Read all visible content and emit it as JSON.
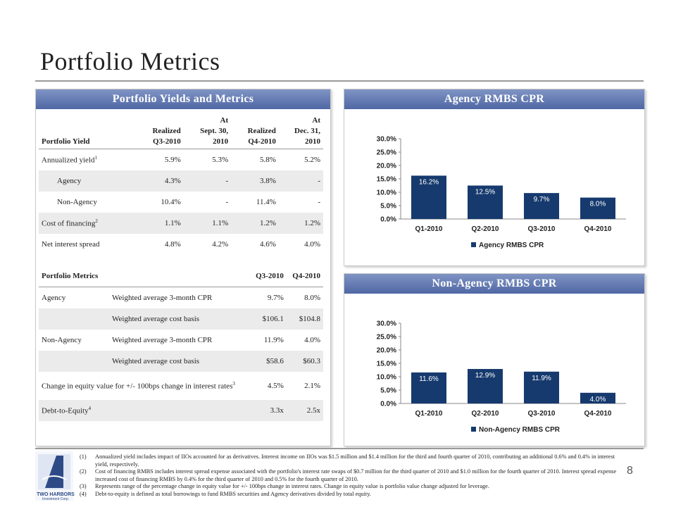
{
  "page": {
    "title": "Portfolio Metrics",
    "page_number": "8"
  },
  "left_panel": {
    "header": "Portfolio Yields and Metrics",
    "yield_table": {
      "header": {
        "label": "Portfolio Yield",
        "col1": [
          "Realized",
          "Q3-2010"
        ],
        "col2": [
          "At",
          "Sept. 30,",
          "2010"
        ],
        "col3": [
          "Realized",
          "Q4-2010"
        ],
        "col4": [
          "At",
          "Dec. 31,",
          "2010"
        ]
      },
      "rows": [
        {
          "label": "Annualized yield",
          "sup": "1",
          "v1": "5.9%",
          "v2": "5.3%",
          "v3": "5.8%",
          "v4": "5.2%",
          "indent": false
        },
        {
          "label": "Agency",
          "sup": "",
          "v1": "4.3%",
          "v2": "-",
          "v3": "3.8%",
          "v4": "-",
          "indent": true
        },
        {
          "label": "Non-Agency",
          "sup": "",
          "v1": "10.4%",
          "v2": "-",
          "v3": "11.4%",
          "v4": "-",
          "indent": true
        },
        {
          "label": "Cost of financing",
          "sup": "2",
          "v1": "1.1%",
          "v2": "1.1%",
          "v3": "1.2%",
          "v4": "1.2%",
          "indent": false
        },
        {
          "label": "Net interest spread",
          "sup": "",
          "v1": "4.8%",
          "v2": "4.2%",
          "v3": "4.6%",
          "v4": "4.0%",
          "indent": false
        }
      ]
    },
    "metrics_table": {
      "header": {
        "label": "Portfolio Metrics",
        "col1": "Q3-2010",
        "col2": "Q4-2010"
      },
      "rows": [
        {
          "label": "Agency",
          "metric": "Weighted average 3-month CPR",
          "v1": "9.7%",
          "v2": "8.0%"
        },
        {
          "label": "",
          "metric": "Weighted average cost basis",
          "v1": "$106.1",
          "v2": "$104.8"
        },
        {
          "label": "Non-Agency",
          "metric": "Weighted average 3-month CPR",
          "v1": "11.9%",
          "v2": "4.0%"
        },
        {
          "label": "",
          "metric": "Weighted average cost basis",
          "v1": "$58.6",
          "v2": "$60.3"
        }
      ],
      "change_row": {
        "label": "Change in equity value for +/- 100bps change in interest rates",
        "sup": "3",
        "v1": "4.5%",
        "v2": "2.1%"
      },
      "dte_row": {
        "label": "Debt-to-Equity",
        "sup": "4",
        "v1": "3.3x",
        "v2": "2.5x"
      }
    }
  },
  "chart_data": [
    {
      "type": "bar",
      "title": "Agency RMBS CPR",
      "categories": [
        "Q1-2010",
        "Q2-2010",
        "Q3-2010",
        "Q4-2010"
      ],
      "series": [
        {
          "name": "Agency RMBS CPR",
          "values": [
            16.2,
            12.5,
            9.7,
            8.0
          ],
          "color": "#163a6e"
        }
      ],
      "data_labels": [
        "16.2%",
        "12.5%",
        "9.7%",
        "8.0%"
      ],
      "y_ticks": [
        "0.0%",
        "5.0%",
        "10.0%",
        "15.0%",
        "20.0%",
        "25.0%",
        "30.0%"
      ],
      "ylim": [
        0,
        30
      ],
      "legend": "bottom"
    },
    {
      "type": "bar",
      "title": "Non-Agency RMBS CPR",
      "categories": [
        "Q1-2010",
        "Q2-2010",
        "Q3-2010",
        "Q4-2010"
      ],
      "series": [
        {
          "name": "Non-Agency RMBS CPR",
          "values": [
            11.6,
            12.9,
            11.9,
            4.0
          ],
          "color": "#163a6e"
        }
      ],
      "data_labels": [
        "11.6%",
        "12.9%",
        "11.9%",
        "4.0%"
      ],
      "y_ticks": [
        "0.0%",
        "5.0%",
        "10.0%",
        "15.0%",
        "20.0%",
        "25.0%",
        "30.0%"
      ],
      "ylim": [
        0,
        30
      ],
      "legend": "bottom"
    }
  ],
  "footnotes": [
    {
      "num": "(1)",
      "text": "Annualized yield includes impact of IIOs accounted for as derivatives. Interest income on IIOs was $1.5 million and $1.4 million for the third and fourth quarter of 2010, contributing an additional 0.6% and 0.4% in interest yield, respectively."
    },
    {
      "num": "(2)",
      "text": "Cost of financing RMBS includes interest spread expense associated with the portfolio's interest rate swaps of $0.7 million for the third quarter of 2010 and $1.0 million for the fourth quarter of 2010. Interest spread expense increased cost of financing RMBS by 0.4% for the third quarter of 2010 and 0.5% for the fourth quarter of 2010."
    },
    {
      "num": "(3)",
      "text": "Represents range of the percentage change in equity value for +/- 100bps change in interest rates. Change in equity value is portfolio value change adjusted for leverage."
    },
    {
      "num": "(4)",
      "text": "Debt-to-equity is defined as total borrowings to fund RMBS securities and Agency derivatives divided by total equity."
    }
  ],
  "logo": {
    "text": "TWO HARBORS",
    "sub": "Investment Corp."
  }
}
